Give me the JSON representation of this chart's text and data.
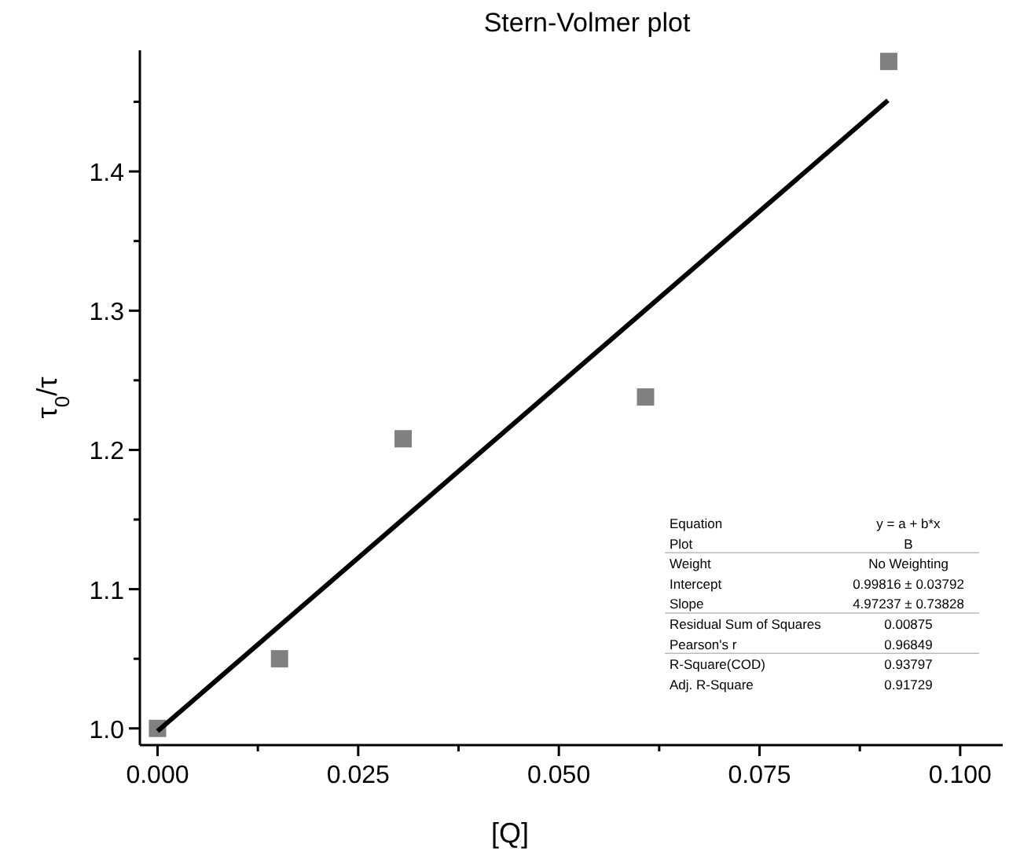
{
  "chart_data": {
    "type": "scatter",
    "title": "Stern-Volmer plot",
    "xlabel": "[Q]",
    "ylabel": "τ$_{0}$/τ",
    "xlim": [
      -0.0022,
      0.1053
    ],
    "ylim": [
      0.988,
      1.487
    ],
    "xticks": [
      {
        "value": 0,
        "label": "0.000"
      },
      {
        "value": 0.0125,
        "label": null
      },
      {
        "value": 0.025,
        "label": "0.025"
      },
      {
        "value": 0.0375,
        "label": null
      },
      {
        "value": 0.05,
        "label": "0.050"
      },
      {
        "value": 0.0625,
        "label": null
      },
      {
        "value": 0.075,
        "label": "0.075"
      },
      {
        "value": 0.0875,
        "label": null
      },
      {
        "value": 0.1,
        "label": "0.100"
      }
    ],
    "yticks": [
      {
        "value": 1,
        "label": "1.0"
      },
      {
        "value": 1.05,
        "label": null
      },
      {
        "value": 1.1,
        "label": "1.1"
      },
      {
        "value": 1.15,
        "label": null
      },
      {
        "value": 1.2,
        "label": "1.2"
      },
      {
        "value": 1.25,
        "label": null
      },
      {
        "value": 1.3,
        "label": "1.3"
      },
      {
        "value": 1.35,
        "label": null
      },
      {
        "value": 1.4,
        "label": "1.4"
      },
      {
        "value": 1.45,
        "label": null
      }
    ],
    "grid": false,
    "series": [
      {
        "marker": "square",
        "color": "#808080",
        "x": [
          0,
          0.0152,
          0.0306,
          0.0608,
          0.0911
        ],
        "values": [
          1.0,
          1.05,
          1.208,
          1.238,
          1.479
        ]
      },
      {
        "type": "line",
        "color": "#000000",
        "x": [
          0,
          0.091
        ],
        "values": [
          0.998,
          1.451
        ]
      }
    ],
    "annotations": [
      "Equation",
      "y = a + b*x",
      "Plot",
      "B",
      "Weight",
      "No Weighting",
      "Intercept",
      "0.99816 ± 0.03792",
      "Slope",
      "4.97237 ± 0.73828",
      "Residual Sum of Squares",
      "0.00875",
      "Pearson's r",
      "0.96849",
      "R-Square(COD)",
      "0.93797",
      "Adj. R-Square",
      "0.91729"
    ]
  }
}
